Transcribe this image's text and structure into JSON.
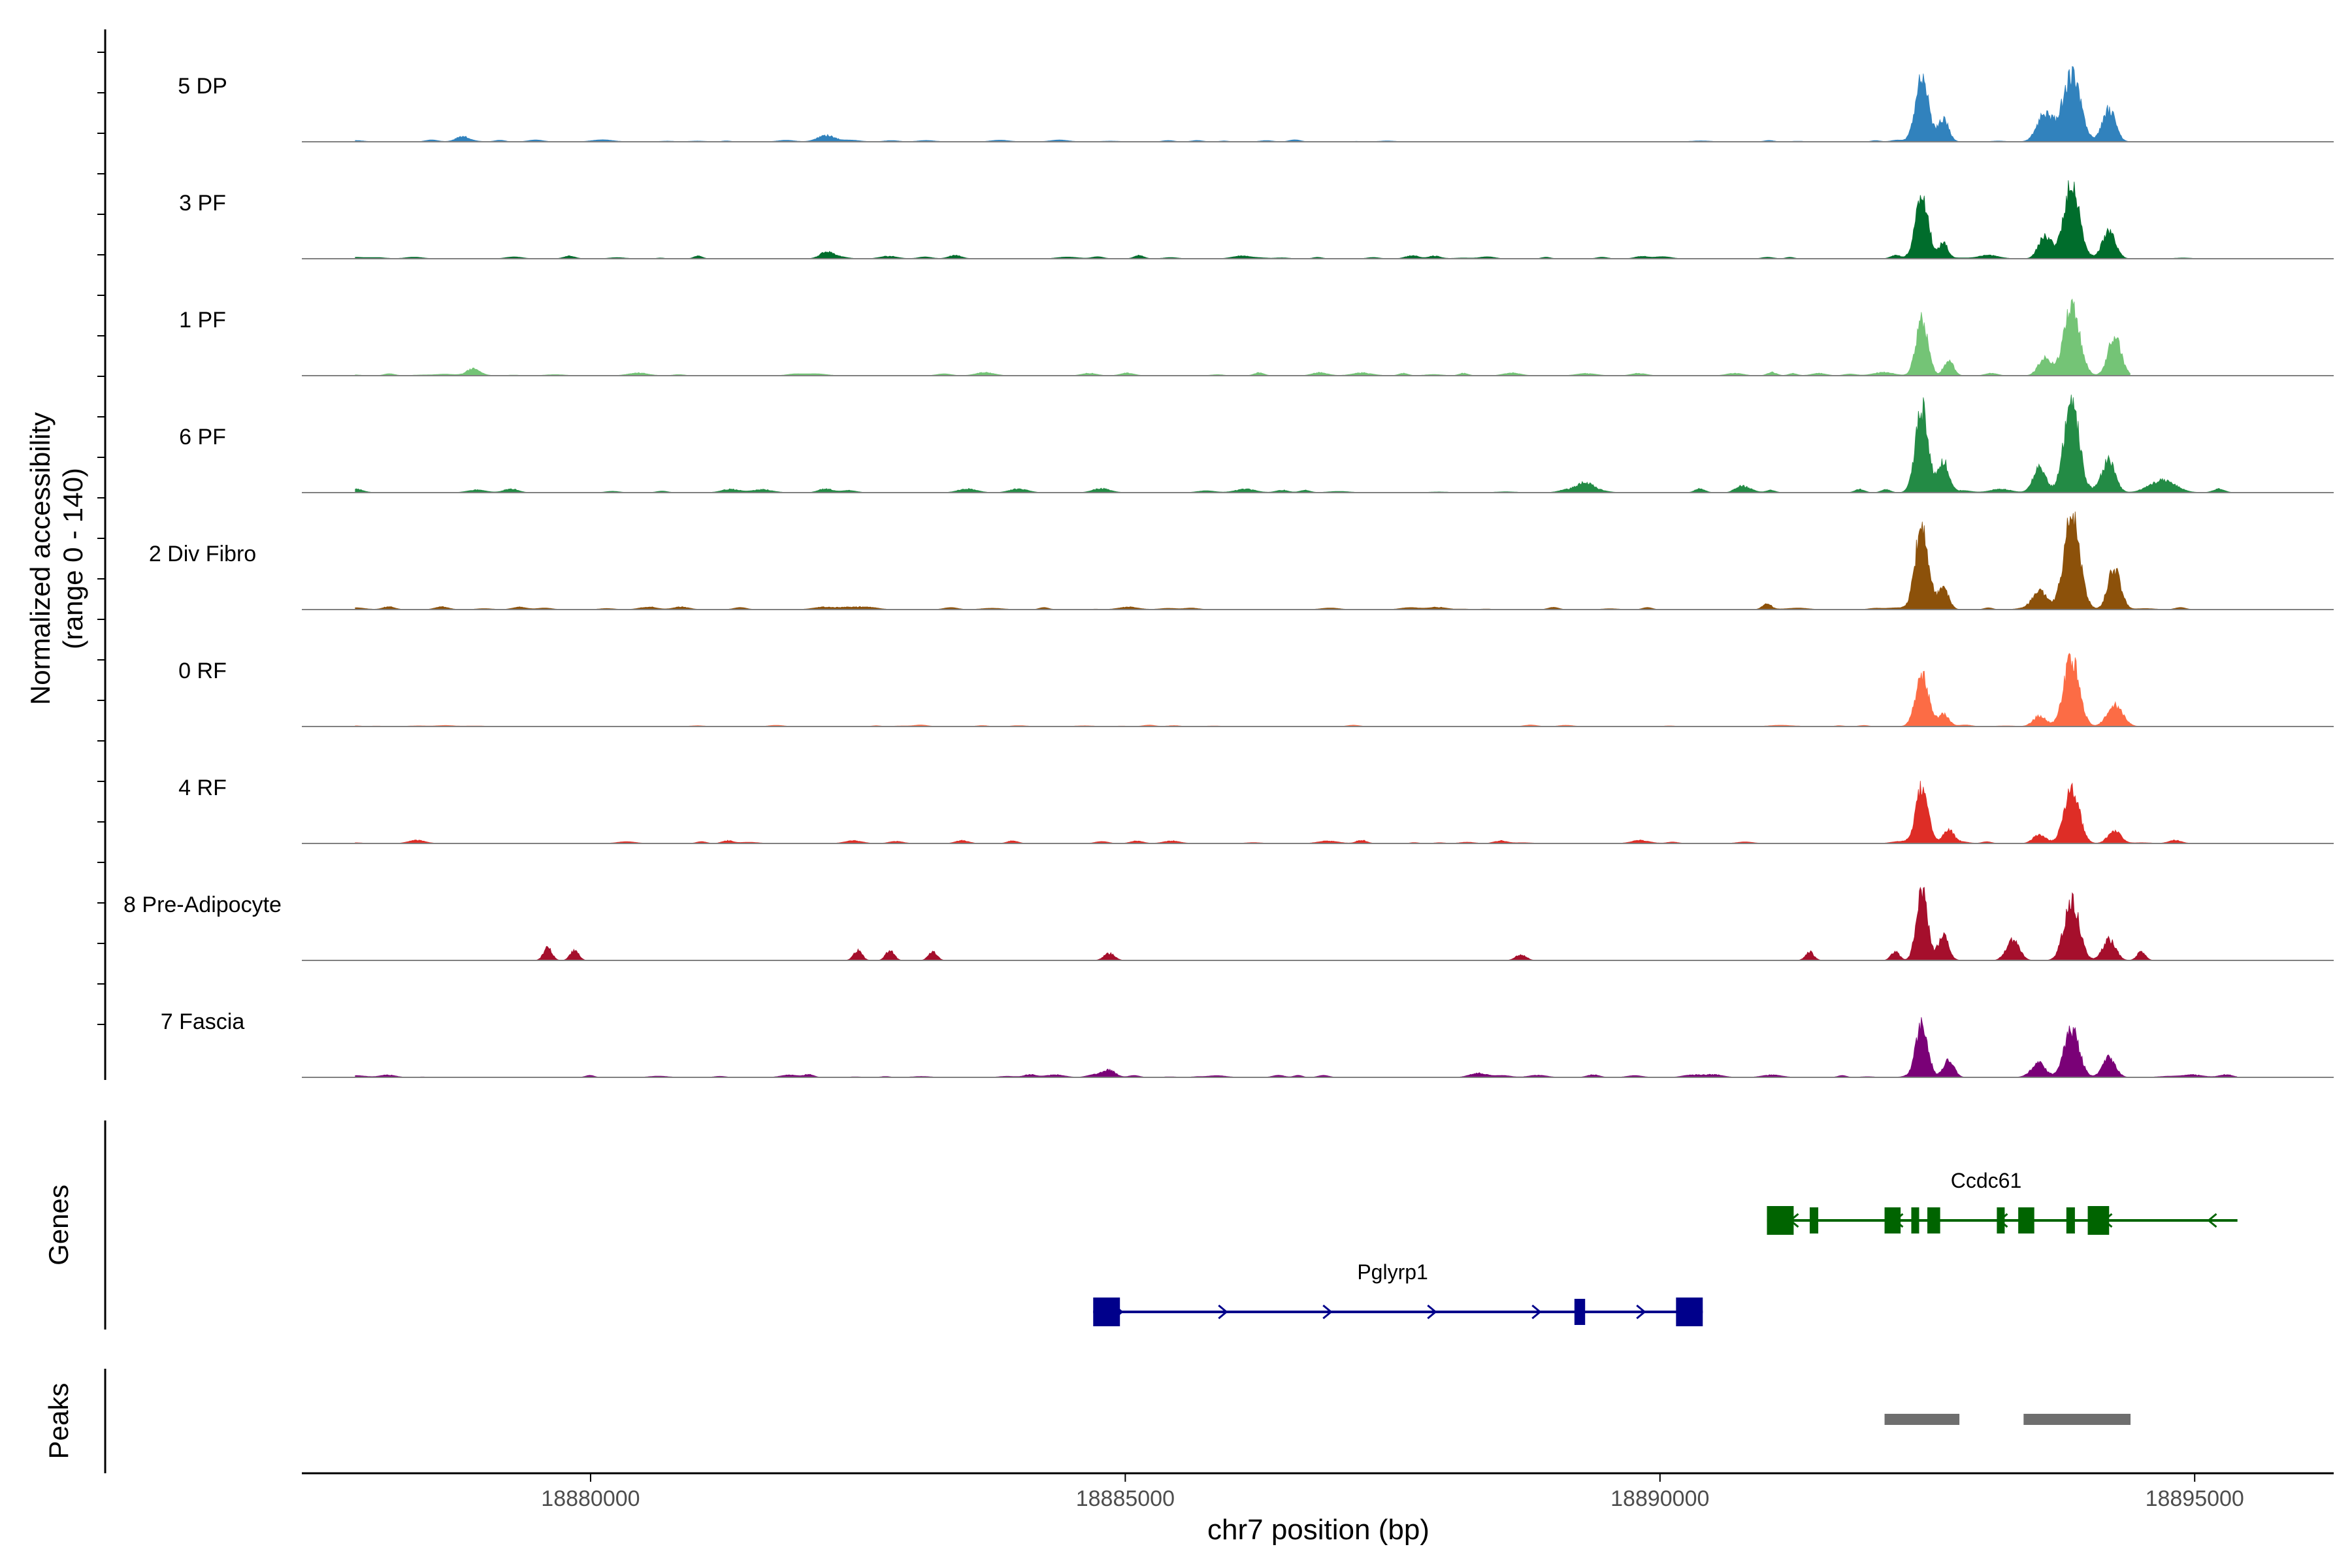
{
  "chart_data": {
    "type": "area",
    "title": "",
    "ylabel": "Normalized accessibility",
    "ylabel_range": "(range 0 - 140)",
    "yrange": [
      0,
      140
    ],
    "xlabel": "chr7 position (bp)",
    "xlim": [
      18877300,
      18896300
    ],
    "xticks": [
      {
        "value": 18880000,
        "label": "18880000"
      },
      {
        "value": 18885000,
        "label": "18885000"
      },
      {
        "value": 18890000,
        "label": "18890000"
      },
      {
        "value": 18895000,
        "label": "18895000"
      }
    ],
    "tracks": [
      {
        "name": "5 DP",
        "color": "#3182bd",
        "peaks": [
          [
            18878800,
            6,
            60
          ],
          [
            18882200,
            9,
            80
          ],
          [
            18892450,
            92,
            60
          ],
          [
            18892650,
            32,
            50
          ],
          [
            18893850,
            95,
            80
          ],
          [
            18894200,
            45,
            60
          ],
          [
            18893600,
            40,
            70
          ]
        ],
        "noise": 1.6,
        "pos_end": 18895200
      },
      {
        "name": "3 PF",
        "color": "#006d2c",
        "peaks": [
          [
            18882200,
            7,
            60
          ],
          [
            18892450,
            88,
            60
          ],
          [
            18892650,
            22,
            40
          ],
          [
            18893850,
            110,
            70
          ],
          [
            18894200,
            40,
            60
          ],
          [
            18893600,
            30,
            60
          ]
        ],
        "noise": 2.6,
        "pos_end": 18895300
      },
      {
        "name": "1 PF",
        "color": "#74c476",
        "peaks": [
          [
            18878900,
            8,
            60
          ],
          [
            18892450,
            80,
            55
          ],
          [
            18892700,
            22,
            45
          ],
          [
            18893850,
            100,
            70
          ],
          [
            18894250,
            55,
            60
          ],
          [
            18893600,
            25,
            60
          ]
        ],
        "noise": 2.8,
        "pos_end": 18894400
      },
      {
        "name": "6 PF",
        "color": "#238b45",
        "peaks": [
          [
            18889300,
            12,
            70
          ],
          [
            18890800,
            7,
            70
          ],
          [
            18892450,
            118,
            60
          ],
          [
            18892650,
            45,
            50
          ],
          [
            18893850,
            130,
            70
          ],
          [
            18894200,
            45,
            60
          ],
          [
            18893550,
            35,
            60
          ],
          [
            18894700,
            18,
            120
          ]
        ],
        "noise": 3.2,
        "pos_end": 18895400
      },
      {
        "name": "2 Div Fibro",
        "color": "#8c510a",
        "peaks": [
          [
            18891000,
            8,
            40
          ],
          [
            18892450,
            120,
            60
          ],
          [
            18892650,
            30,
            50
          ],
          [
            18893850,
            140,
            70
          ],
          [
            18894250,
            55,
            60
          ],
          [
            18893550,
            25,
            60
          ]
        ],
        "noise": 2.2,
        "pos_end": 18895400
      },
      {
        "name": "0 RF",
        "color": "#fc6c45",
        "peaks": [
          [
            18892450,
            72,
            60
          ],
          [
            18892650,
            18,
            50
          ],
          [
            18893850,
            98,
            70
          ],
          [
            18894250,
            30,
            70
          ],
          [
            18893550,
            15,
            60
          ]
        ],
        "noise": 1.2,
        "pos_end": 18894600
      },
      {
        "name": "4 RF",
        "color": "#de2d26",
        "peaks": [
          [
            18892450,
            80,
            55
          ],
          [
            18892700,
            18,
            45
          ],
          [
            18893850,
            78,
            70
          ],
          [
            18894250,
            18,
            60
          ],
          [
            18893550,
            12,
            60
          ]
        ],
        "noise": 2.4,
        "pos_end": 18895100
      },
      {
        "name": "8 Pre-Adipocyte",
        "color": "#a50f2c",
        "peaks": [
          [
            18879600,
            18,
            40
          ],
          [
            18879850,
            14,
            40
          ],
          [
            18882500,
            14,
            40
          ],
          [
            18882800,
            14,
            40
          ],
          [
            18883200,
            12,
            40
          ],
          [
            18884850,
            10,
            50
          ],
          [
            18888700,
            8,
            50
          ],
          [
            18891400,
            12,
            40
          ],
          [
            18892200,
            12,
            40
          ],
          [
            18892450,
            105,
            50
          ],
          [
            18892650,
            35,
            50
          ],
          [
            18893300,
            30,
            60
          ],
          [
            18893850,
            85,
            70
          ],
          [
            18894200,
            30,
            60
          ],
          [
            18894500,
            12,
            40
          ]
        ],
        "noise": 0.0,
        "pos_end": 18895400
      },
      {
        "name": "7 Fascia",
        "color": "#7a0177",
        "peaks": [
          [
            18884850,
            10,
            60
          ],
          [
            18888300,
            6,
            80
          ],
          [
            18892450,
            75,
            55
          ],
          [
            18892700,
            25,
            50
          ],
          [
            18893850,
            68,
            70
          ],
          [
            18894200,
            28,
            60
          ],
          [
            18893550,
            18,
            60
          ]
        ],
        "noise": 2.0,
        "pos_end": 18895400
      }
    ],
    "genes": [
      {
        "name": "Ccdc61",
        "strand": "-",
        "start": 18891000,
        "end": 18895400,
        "color": "#006400",
        "exons": [
          [
            18891000,
            18891250
          ],
          [
            18891400,
            18891480
          ],
          [
            18892100,
            18892250
          ],
          [
            18892350,
            18892420
          ],
          [
            18892500,
            18892620
          ],
          [
            18893150,
            18893220
          ],
          [
            18893350,
            18893500
          ],
          [
            18893800,
            18893880
          ],
          [
            18894000,
            18894200
          ]
        ]
      },
      {
        "name": "Pglyrp1",
        "strand": "+",
        "start": 18884700,
        "end": 18890400,
        "color": "#00008b",
        "exons": [
          [
            18884700,
            18884950
          ],
          [
            18889200,
            18889300
          ],
          [
            18890150,
            18890400
          ]
        ]
      }
    ],
    "track_labels": [
      "Genes",
      "Peaks"
    ],
    "peaks": [
      {
        "start": 18892100,
        "end": 18892800
      },
      {
        "start": 18893400,
        "end": 18894400
      }
    ]
  }
}
